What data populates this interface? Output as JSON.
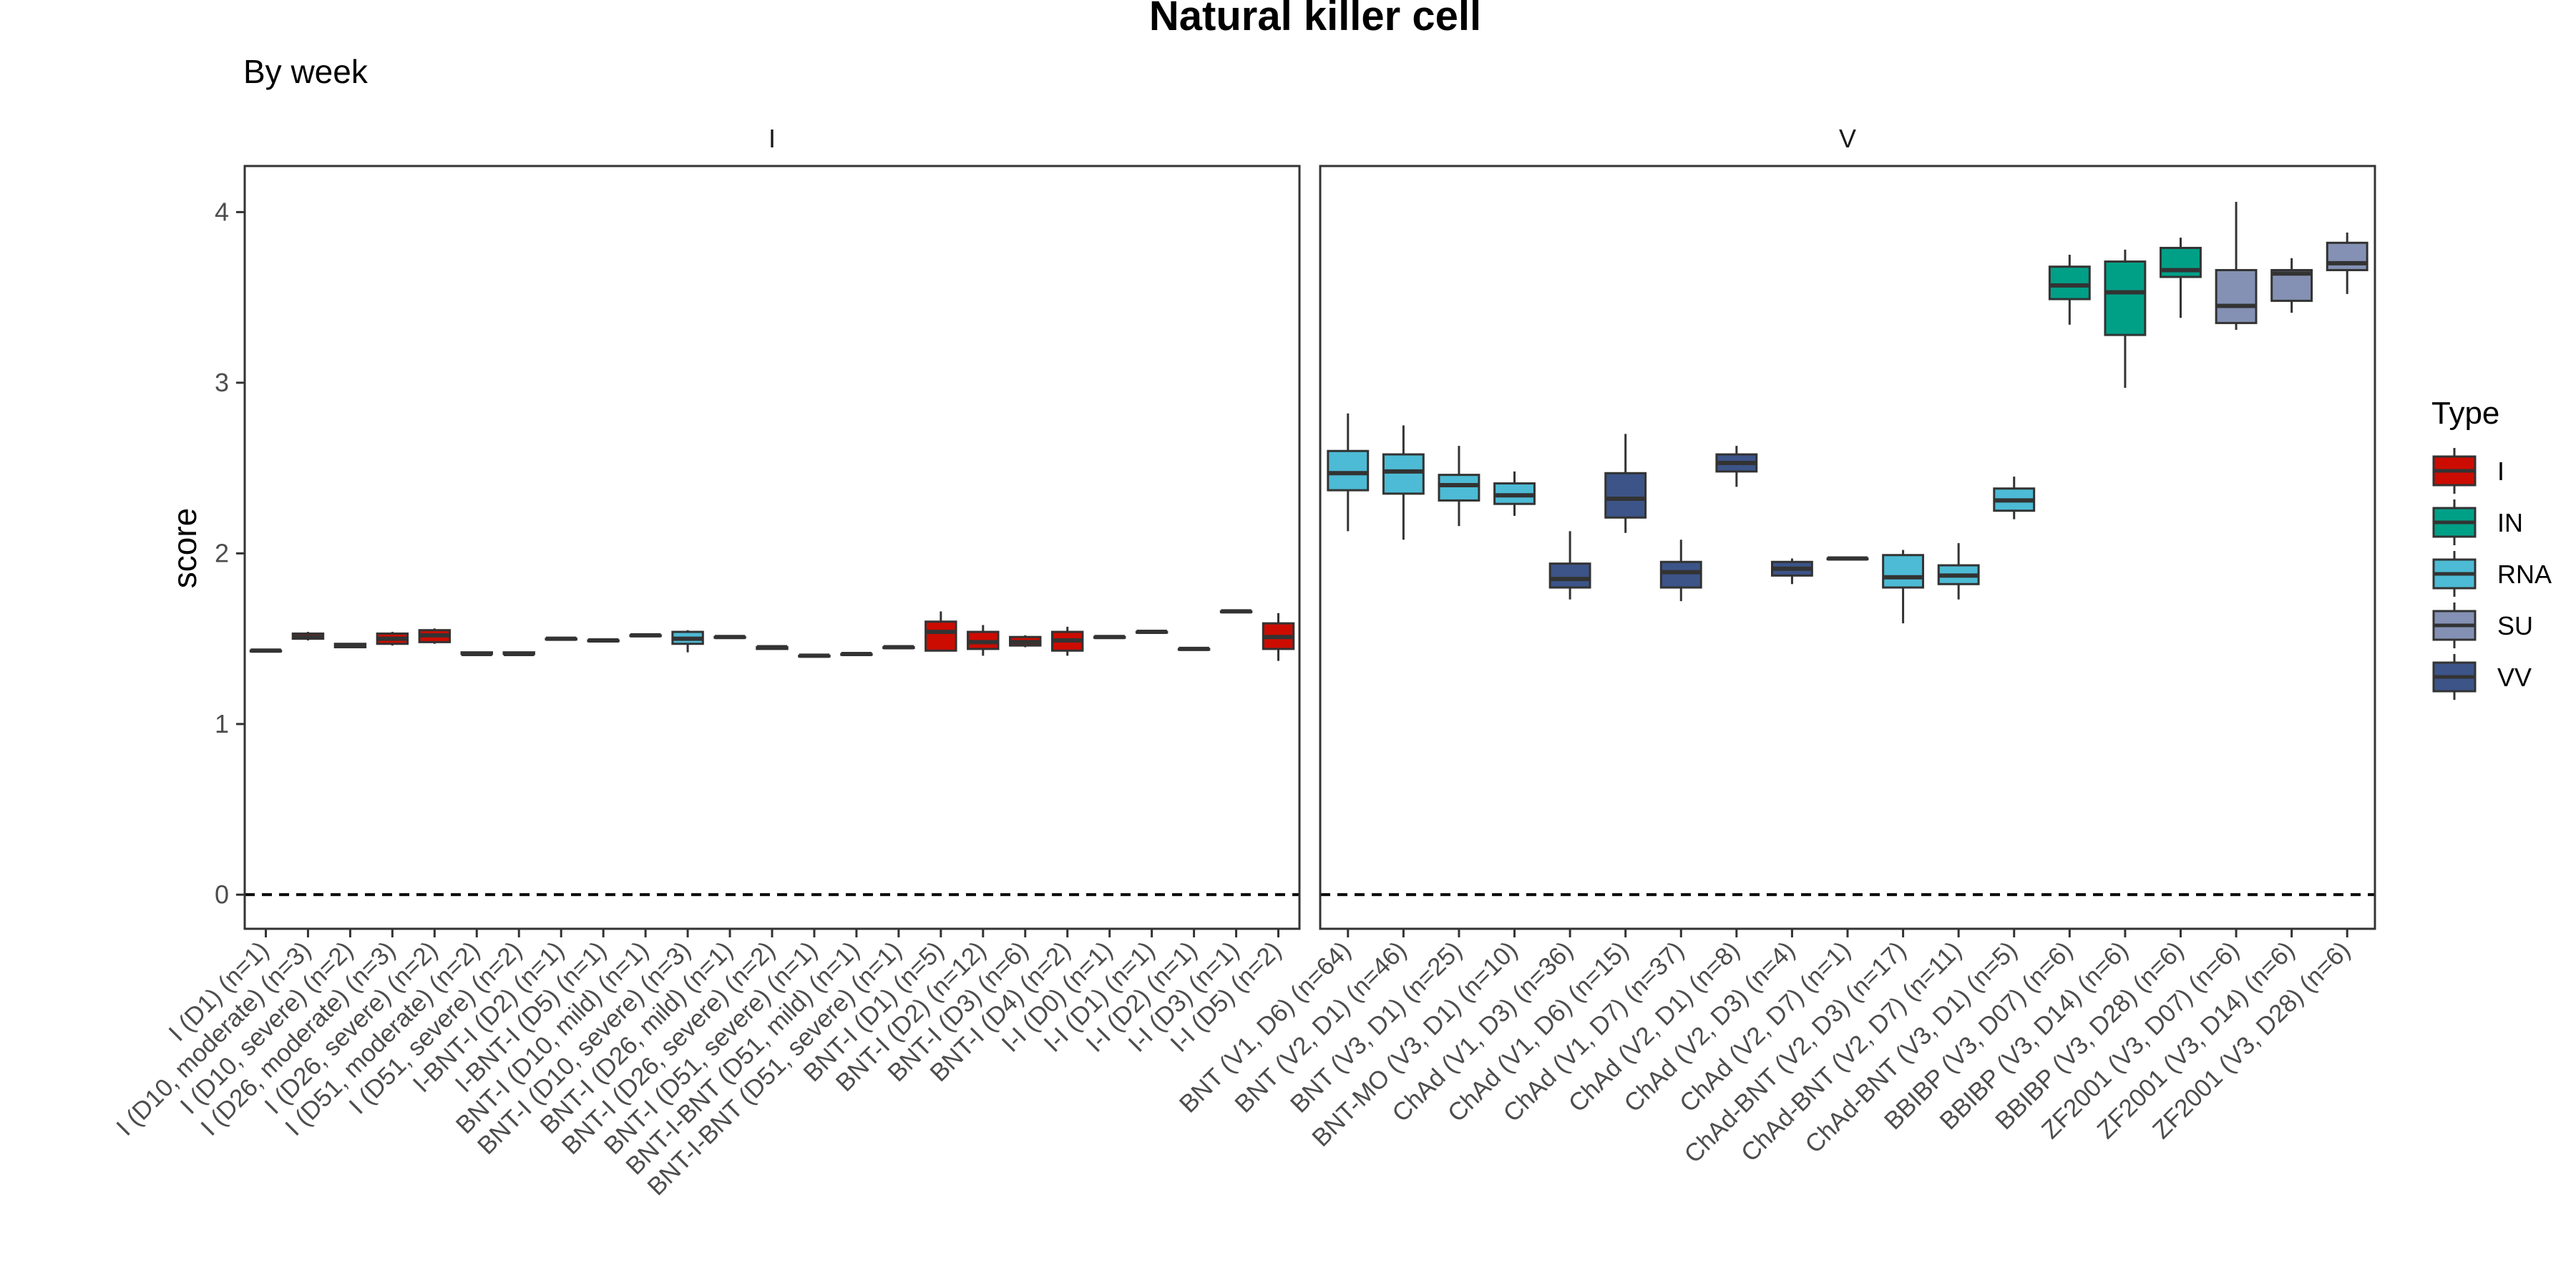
{
  "chart_data": {
    "type": "boxplot",
    "title": "Natural killer cell",
    "subtitle": "By week",
    "ylabel": "score",
    "xlabel": "",
    "ylim": [
      -0.2,
      4.27
    ],
    "yticks": [
      0,
      1,
      2,
      3,
      4
    ],
    "reference_line": 0,
    "legend": {
      "title": "Type",
      "position": "right",
      "entries": [
        {
          "name": "I",
          "color": "#CC0C00"
        },
        {
          "name": "IN",
          "color": "#00A087"
        },
        {
          "name": "RNA",
          "color": "#4DBBD5"
        },
        {
          "name": "SU",
          "color": "#8491B4"
        },
        {
          "name": "VV",
          "color": "#3C5488"
        }
      ]
    },
    "facets": [
      {
        "name": "I",
        "categories": [
          {
            "label": "I (D1) (n=1)",
            "type": "I",
            "q1": 1.43,
            "median": 1.43,
            "q3": 1.43,
            "min": 1.43,
            "max": 1.43
          },
          {
            "label": "I (D10, moderate) (n=3)",
            "type": "I",
            "q1": 1.5,
            "median": 1.51,
            "q3": 1.53,
            "min": 1.49,
            "max": 1.54
          },
          {
            "label": "I (D10, severe) (n=2)",
            "type": "I",
            "q1": 1.45,
            "median": 1.46,
            "q3": 1.47,
            "min": 1.45,
            "max": 1.47
          },
          {
            "label": "I (D26, moderate) (n=3)",
            "type": "I",
            "q1": 1.47,
            "median": 1.5,
            "q3": 1.53,
            "min": 1.46,
            "max": 1.54
          },
          {
            "label": "I (D26, severe) (n=2)",
            "type": "I",
            "q1": 1.48,
            "median": 1.52,
            "q3": 1.55,
            "min": 1.47,
            "max": 1.56
          },
          {
            "label": "I (D51, moderate) (n=2)",
            "type": "I",
            "q1": 1.41,
            "median": 1.41,
            "q3": 1.42,
            "min": 1.4,
            "max": 1.42
          },
          {
            "label": "I (D51, severe) (n=2)",
            "type": "I",
            "q1": 1.41,
            "median": 1.41,
            "q3": 1.42,
            "min": 1.41,
            "max": 1.42
          },
          {
            "label": "I-BNT-I (D2) (n=1)",
            "type": "I",
            "q1": 1.5,
            "median": 1.5,
            "q3": 1.5,
            "min": 1.5,
            "max": 1.5
          },
          {
            "label": "I-BNT-I (D5) (n=1)",
            "type": "I",
            "q1": 1.49,
            "median": 1.49,
            "q3": 1.49,
            "min": 1.49,
            "max": 1.49
          },
          {
            "label": "BNT-I (D10, mild) (n=1)",
            "type": "I",
            "q1": 1.52,
            "median": 1.52,
            "q3": 1.52,
            "min": 1.52,
            "max": 1.52
          },
          {
            "label": "BNT-I (D10, severe) (n=3)",
            "type": "RNA",
            "q1": 1.47,
            "median": 1.5,
            "q3": 1.54,
            "min": 1.42,
            "max": 1.55
          },
          {
            "label": "BNT-I (D26, mild) (n=1)",
            "type": "I",
            "q1": 1.51,
            "median": 1.51,
            "q3": 1.51,
            "min": 1.51,
            "max": 1.51
          },
          {
            "label": "BNT-I (D26, severe) (n=2)",
            "type": "I",
            "q1": 1.44,
            "median": 1.45,
            "q3": 1.45,
            "min": 1.44,
            "max": 1.46
          },
          {
            "label": "BNT-I (D51, severe) (n=1)",
            "type": "I",
            "q1": 1.4,
            "median": 1.4,
            "q3": 1.4,
            "min": 1.4,
            "max": 1.4
          },
          {
            "label": "BNT-I-BNT (D51, mild) (n=1)",
            "type": "I",
            "q1": 1.41,
            "median": 1.41,
            "q3": 1.41,
            "min": 1.41,
            "max": 1.41
          },
          {
            "label": "BNT-I-BNT (D51, severe) (n=1)",
            "type": "I",
            "q1": 1.45,
            "median": 1.45,
            "q3": 1.45,
            "min": 1.45,
            "max": 1.45
          },
          {
            "label": "BNT-I (D1) (n=5)",
            "type": "I",
            "q1": 1.43,
            "median": 1.54,
            "q3": 1.6,
            "min": 1.43,
            "max": 1.66
          },
          {
            "label": "BNT-I (D2) (n=12)",
            "type": "I",
            "q1": 1.44,
            "median": 1.48,
            "q3": 1.54,
            "min": 1.4,
            "max": 1.58
          },
          {
            "label": "BNT-I (D3) (n=6)",
            "type": "I",
            "q1": 1.46,
            "median": 1.48,
            "q3": 1.51,
            "min": 1.45,
            "max": 1.52
          },
          {
            "label": "BNT-I (D4) (n=2)",
            "type": "I",
            "q1": 1.43,
            "median": 1.49,
            "q3": 1.54,
            "min": 1.4,
            "max": 1.57
          },
          {
            "label": "I-I (D0) (n=1)",
            "type": "I",
            "q1": 1.51,
            "median": 1.51,
            "q3": 1.51,
            "min": 1.51,
            "max": 1.51
          },
          {
            "label": "I-I (D1) (n=1)",
            "type": "I",
            "q1": 1.54,
            "median": 1.54,
            "q3": 1.54,
            "min": 1.54,
            "max": 1.54
          },
          {
            "label": "I-I (D2) (n=1)",
            "type": "I",
            "q1": 1.44,
            "median": 1.44,
            "q3": 1.44,
            "min": 1.44,
            "max": 1.44
          },
          {
            "label": "I-I (D3) (n=1)",
            "type": "I",
            "q1": 1.66,
            "median": 1.66,
            "q3": 1.66,
            "min": 1.66,
            "max": 1.66
          },
          {
            "label": "I-I (D5) (n=2)",
            "type": "I",
            "q1": 1.44,
            "median": 1.51,
            "q3": 1.59,
            "min": 1.37,
            "max": 1.65
          }
        ]
      },
      {
        "name": "V",
        "categories": [
          {
            "label": "BNT (V1, D6) (n=64)",
            "type": "RNA",
            "q1": 2.37,
            "median": 2.47,
            "q3": 2.6,
            "min": 2.13,
            "max": 2.82
          },
          {
            "label": "BNT (V2, D1) (n=46)",
            "type": "RNA",
            "q1": 2.35,
            "median": 2.48,
            "q3": 2.58,
            "min": 2.08,
            "max": 2.75
          },
          {
            "label": "BNT (V3, D1) (n=25)",
            "type": "RNA",
            "q1": 2.31,
            "median": 2.4,
            "q3": 2.46,
            "min": 2.16,
            "max": 2.63
          },
          {
            "label": "BNT-MO (V3, D1) (n=10)",
            "type": "RNA",
            "q1": 2.29,
            "median": 2.34,
            "q3": 2.41,
            "min": 2.22,
            "max": 2.48
          },
          {
            "label": "ChAd (V1, D3) (n=36)",
            "type": "VV",
            "q1": 1.8,
            "median": 1.85,
            "q3": 1.94,
            "min": 1.73,
            "max": 2.13
          },
          {
            "label": "ChAd (V1, D6) (n=15)",
            "type": "VV",
            "q1": 2.21,
            "median": 2.32,
            "q3": 2.47,
            "min": 2.12,
            "max": 2.7
          },
          {
            "label": "ChAd (V1, D7) (n=37)",
            "type": "VV",
            "q1": 1.8,
            "median": 1.89,
            "q3": 1.95,
            "min": 1.72,
            "max": 2.08
          },
          {
            "label": "ChAd (V2, D1) (n=8)",
            "type": "VV",
            "q1": 2.48,
            "median": 2.53,
            "q3": 2.58,
            "min": 2.39,
            "max": 2.63
          },
          {
            "label": "ChAd (V2, D3) (n=4)",
            "type": "VV",
            "q1": 1.87,
            "median": 1.91,
            "q3": 1.95,
            "min": 1.82,
            "max": 1.97
          },
          {
            "label": "ChAd (V2, D7) (n=1)",
            "type": "VV",
            "q1": 1.97,
            "median": 1.97,
            "q3": 1.97,
            "min": 1.97,
            "max": 1.97
          },
          {
            "label": "ChAd-BNT (V2, D3) (n=17)",
            "type": "RNA",
            "q1": 1.8,
            "median": 1.86,
            "q3": 1.99,
            "min": 1.59,
            "max": 2.02
          },
          {
            "label": "ChAd-BNT (V2, D7) (n=11)",
            "type": "RNA",
            "q1": 1.82,
            "median": 1.87,
            "q3": 1.93,
            "min": 1.73,
            "max": 2.06
          },
          {
            "label": "ChAd-BNT (V3, D1) (n=5)",
            "type": "RNA",
            "q1": 2.25,
            "median": 2.31,
            "q3": 2.38,
            "min": 2.2,
            "max": 2.45
          },
          {
            "label": "BBIBP (V3, D07) (n=6)",
            "type": "IN",
            "q1": 3.49,
            "median": 3.57,
            "q3": 3.68,
            "min": 3.34,
            "max": 3.75
          },
          {
            "label": "BBIBP (V3, D14) (n=6)",
            "type": "IN",
            "q1": 3.28,
            "median": 3.53,
            "q3": 3.71,
            "min": 2.97,
            "max": 3.78
          },
          {
            "label": "BBIBP (V3, D28) (n=6)",
            "type": "IN",
            "q1": 3.62,
            "median": 3.66,
            "q3": 3.79,
            "min": 3.38,
            "max": 3.85
          },
          {
            "label": "ZF2001 (V3, D07) (n=6)",
            "type": "SU",
            "q1": 3.35,
            "median": 3.45,
            "q3": 3.66,
            "min": 3.31,
            "max": 4.06
          },
          {
            "label": "ZF2001 (V3, D14) (n=6)",
            "type": "SU",
            "q1": 3.48,
            "median": 3.64,
            "q3": 3.66,
            "min": 3.41,
            "max": 3.73
          },
          {
            "label": "ZF2001 (V3, D28) (n=6)",
            "type": "SU",
            "q1": 3.66,
            "median": 3.7,
            "q3": 3.82,
            "min": 3.52,
            "max": 3.88
          }
        ]
      }
    ]
  }
}
